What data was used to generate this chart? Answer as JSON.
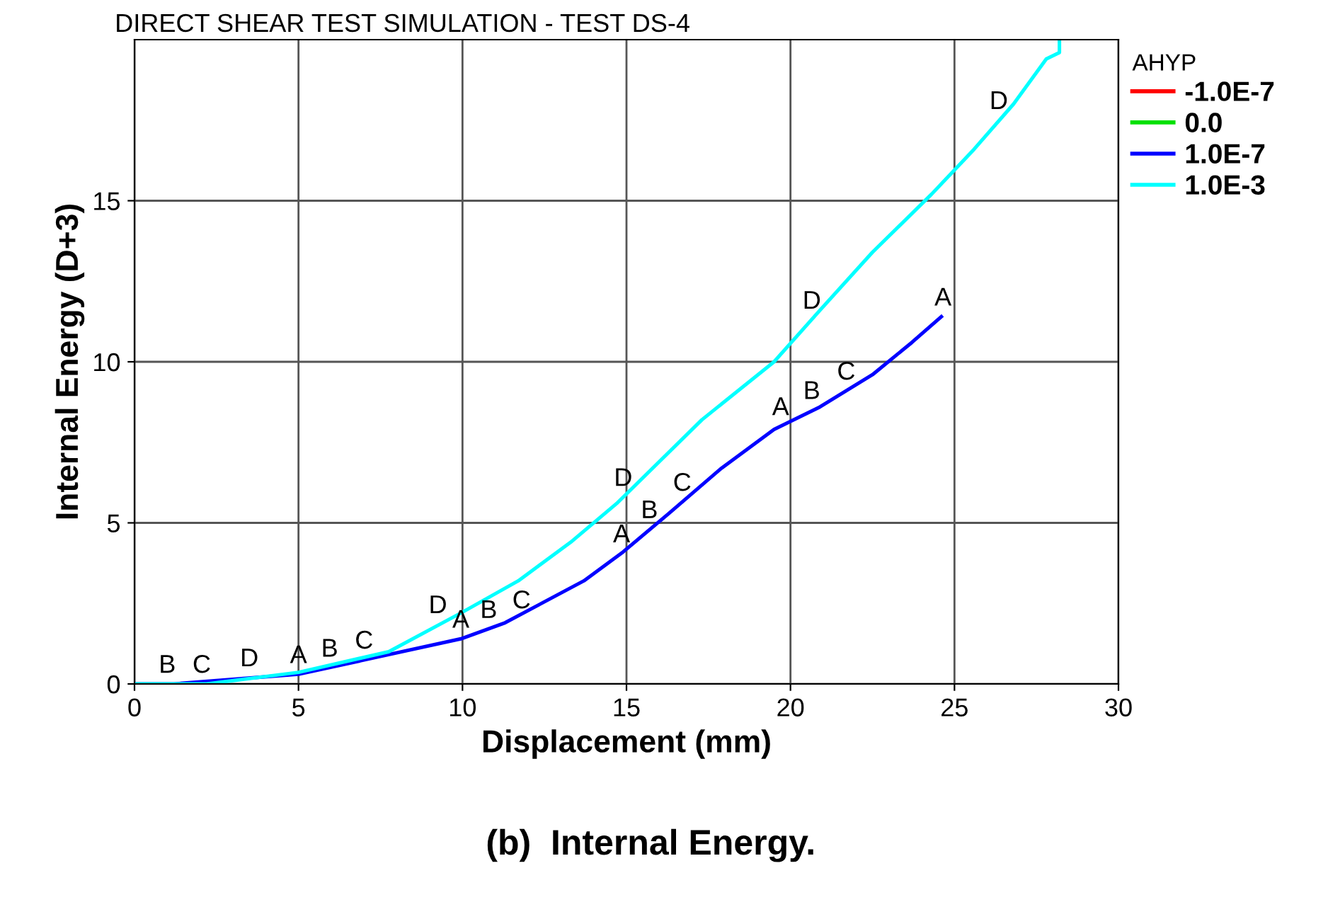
{
  "chart_data": {
    "type": "line",
    "title": "DIRECT SHEAR TEST SIMULATION - TEST DS-4",
    "xlabel": "Displacement (mm)",
    "ylabel": "Internal Energy (D+3)",
    "legend_title": "AHYP",
    "legend": "right",
    "grid": true,
    "xlim": [
      0,
      30
    ],
    "xticks": [
      0,
      5,
      10,
      15,
      20,
      25,
      30
    ],
    "ylim": [
      0,
      20
    ],
    "yticks": [
      0,
      5,
      10,
      15
    ],
    "series": [
      {
        "name": "-1.0E-7",
        "color": "#ff0000"
      },
      {
        "name": "0.0",
        "color": "#00e000"
      },
      {
        "name": "1.0E-7",
        "color": "#0000ff",
        "x": [
          0,
          1.2,
          5,
          9.95,
          11.3,
          13.7,
          14.9,
          16.3,
          17.9,
          19.5,
          20.9,
          22.5,
          23.7,
          24.6
        ],
        "values": [
          0,
          0,
          0.3,
          1.4,
          1.9,
          3.2,
          4.1,
          5.3,
          6.7,
          7.9,
          8.6,
          9.6,
          10.6,
          11.4
        ]
      },
      {
        "name": "1.0E-3",
        "color": "#00ffff",
        "x": [
          0,
          2.2,
          5,
          7.75,
          9.95,
          11.7,
          13.3,
          14.7,
          16.1,
          17.3,
          19.5,
          20.9,
          22.5,
          24.3,
          25.6,
          26.8,
          27.8,
          28.2,
          28.2
        ],
        "values": [
          0,
          0,
          0.36,
          1.0,
          2.2,
          3.2,
          4.4,
          5.6,
          7.0,
          8.2,
          10.0,
          11.6,
          13.4,
          15.2,
          16.6,
          18.0,
          19.4,
          19.6,
          20.0
        ]
      }
    ],
    "annotations": [
      {
        "text": "B",
        "x": 1.0,
        "y": 0
      },
      {
        "text": "C",
        "x": 2.05,
        "y": 0
      },
      {
        "text": "D",
        "x": 3.5,
        "y": 0.2
      },
      {
        "text": "A",
        "x": 5.0,
        "y": 0.3
      },
      {
        "text": "B",
        "x": 5.95,
        "y": 0.5
      },
      {
        "text": "C",
        "x": 7.0,
        "y": 0.75
      },
      {
        "text": "D",
        "x": 9.25,
        "y": 1.85
      },
      {
        "text": "A",
        "x": 9.95,
        "y": 1.4
      },
      {
        "text": "B",
        "x": 10.8,
        "y": 1.7
      },
      {
        "text": "C",
        "x": 11.8,
        "y": 2.0
      },
      {
        "text": "A",
        "x": 14.85,
        "y": 4.05
      },
      {
        "text": "D",
        "x": 14.9,
        "y": 5.8
      },
      {
        "text": "B",
        "x": 15.7,
        "y": 4.8
      },
      {
        "text": "C",
        "x": 16.7,
        "y": 5.65
      },
      {
        "text": "A",
        "x": 19.7,
        "y": 8.0
      },
      {
        "text": "B",
        "x": 20.65,
        "y": 8.5
      },
      {
        "text": "D",
        "x": 20.65,
        "y": 11.3
      },
      {
        "text": "C",
        "x": 21.7,
        "y": 9.1
      },
      {
        "text": "A",
        "x": 24.65,
        "y": 11.4
      },
      {
        "text": "D",
        "x": 26.35,
        "y": 17.5
      },
      "(b)  Internal Energy."
    ]
  }
}
